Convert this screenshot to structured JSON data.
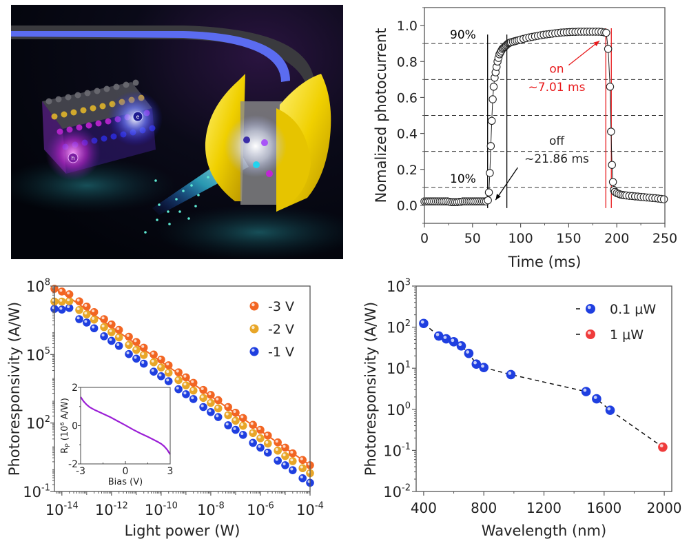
{
  "illustration": {
    "description": "3D artwork of layered crystal lattice with electron (e) and hole (h+) carriers, optical fiber ring and gold electrodes emitting light",
    "carrier_labels": [
      "e",
      "h"
    ]
  },
  "chart_data": [
    {
      "id": "time-response",
      "type": "scatter",
      "title": "",
      "xlabel": "Time (ms)",
      "ylabel": "Nomalized photocurrent",
      "xlim": [
        0,
        250
      ],
      "ylim": [
        -0.1,
        1.1
      ],
      "xticks": [
        "0",
        "50",
        "100",
        "150",
        "200",
        "250"
      ],
      "xtick_values": [
        0,
        50,
        100,
        150,
        200,
        250
      ],
      "yticks": [
        "0.0",
        "0.2",
        "0.4",
        "0.6",
        "0.8",
        "1.0"
      ],
      "ytick_values": [
        0,
        0.2,
        0.4,
        0.6,
        0.8,
        1.0
      ],
      "grid_levels": [
        0.1,
        0.3,
        0.5,
        0.7,
        0.9
      ],
      "marker": "open-circle",
      "x": [
        0,
        2,
        4,
        6,
        8,
        10,
        12,
        14,
        16,
        18,
        20,
        22,
        24,
        26,
        28,
        30,
        32,
        34,
        36,
        38,
        40,
        42,
        44,
        46,
        48,
        50,
        52,
        54,
        56,
        58,
        60,
        62,
        64,
        66,
        67,
        68,
        69,
        70,
        71,
        72,
        73,
        74,
        75,
        76,
        77,
        78,
        79,
        80,
        81,
        82,
        83,
        84,
        85,
        86,
        87,
        88,
        89,
        90,
        92,
        94,
        96,
        98,
        100,
        103,
        106,
        109,
        112,
        115,
        118,
        121,
        124,
        127,
        130,
        133,
        136,
        139,
        142,
        145,
        148,
        151,
        154,
        157,
        160,
        163,
        166,
        169,
        172,
        175,
        178,
        181,
        184,
        187,
        189,
        191,
        193,
        194,
        195,
        196,
        197,
        198,
        200,
        202,
        204,
        206,
        208,
        210,
        213,
        216,
        219,
        222,
        225,
        228,
        231,
        234,
        237,
        240,
        243,
        246,
        249
      ],
      "y": [
        0.022,
        0.022,
        0.022,
        0.022,
        0.022,
        0.022,
        0.022,
        0.022,
        0.022,
        0.022,
        0.022,
        0.022,
        0.022,
        0.02,
        0.018,
        0.018,
        0.018,
        0.018,
        0.02,
        0.02,
        0.022,
        0.022,
        0.022,
        0.022,
        0.022,
        0.022,
        0.022,
        0.022,
        0.022,
        0.022,
        0.022,
        0.022,
        0.022,
        0.028,
        0.072,
        0.18,
        0.33,
        0.47,
        0.59,
        0.66,
        0.71,
        0.74,
        0.77,
        0.8,
        0.82,
        0.84,
        0.85,
        0.86,
        0.87,
        0.875,
        0.88,
        0.885,
        0.89,
        0.895,
        0.9,
        0.903,
        0.905,
        0.907,
        0.91,
        0.913,
        0.916,
        0.919,
        0.922,
        0.926,
        0.93,
        0.934,
        0.937,
        0.94,
        0.943,
        0.946,
        0.949,
        0.951,
        0.953,
        0.955,
        0.957,
        0.959,
        0.961,
        0.962,
        0.963,
        0.964,
        0.965,
        0.965,
        0.966,
        0.966,
        0.966,
        0.966,
        0.966,
        0.966,
        0.966,
        0.966,
        0.965,
        0.962,
        0.96,
        0.87,
        0.66,
        0.41,
        0.225,
        0.13,
        0.085,
        0.075,
        0.068,
        0.064,
        0.06,
        0.058,
        0.056,
        0.055,
        0.053,
        0.052,
        0.05,
        0.049,
        0.047,
        0.046,
        0.044,
        0.043,
        0.041,
        0.04,
        0.038,
        0.036,
        0.034
      ],
      "markers_x": [],
      "vlines": [
        {
          "x": 65.7,
          "color": "#000000"
        },
        {
          "x": 85.7,
          "color": "#000000"
        },
        {
          "x": 188.6,
          "color": "#e8191b"
        },
        {
          "x": 194.3,
          "color": "#e8191b"
        }
      ],
      "annotations": [
        {
          "text": "90%",
          "color": "#000000",
          "x": 25,
          "y": 0.95
        },
        {
          "text": "10%",
          "color": "#000000",
          "x": 25,
          "y": 0.15
        },
        {
          "text": "on",
          "color": "#e8191b",
          "x": 137,
          "y": 0.76
        },
        {
          "text": "~7.01 ms",
          "color": "#e8191b",
          "x": 137,
          "y": 0.66
        },
        {
          "text": "off",
          "color": "#222222",
          "x": 137,
          "y": 0.36
        },
        {
          "text": "~21.86 ms",
          "color": "#222222",
          "x": 137,
          "y": 0.26
        }
      ],
      "arrows": [
        {
          "from": [
            150,
            0.78
          ],
          "to": [
            182,
            0.915
          ],
          "color": "#e8191b"
        },
        {
          "from": [
            97,
            0.21
          ],
          "to": [
            74,
            0.03
          ],
          "color": "#000000"
        }
      ]
    },
    {
      "id": "responsivity-vs-power",
      "type": "scatter",
      "title": "",
      "xlabel": "Light power (W)",
      "ylabel": "Photoresponsivity (A/W)",
      "xscale": "log",
      "yscale": "log",
      "xlim_log10": [
        -14.3,
        -4
      ],
      "ylim_log10": [
        -1,
        8
      ],
      "xticks": [
        {
          "base": "10",
          "exp": "-14",
          "v": -14
        },
        {
          "base": "10",
          "exp": "-12",
          "v": -12
        },
        {
          "base": "10",
          "exp": "-10",
          "v": -10
        },
        {
          "base": "10",
          "exp": "-8",
          "v": -8
        },
        {
          "base": "10",
          "exp": "-6",
          "v": -6
        },
        {
          "base": "10",
          "exp": "-4",
          "v": -4
        }
      ],
      "yticks": [
        {
          "base": "10",
          "exp": "8",
          "v": 8
        },
        {
          "base": "10",
          "exp": "5",
          "v": 5
        },
        {
          "base": "10",
          "exp": "2",
          "v": 2
        },
        {
          "base": "10",
          "exp": "-1",
          "v": -1
        }
      ],
      "legend": {
        "position": "top-right"
      },
      "x_log10": [
        -14.3,
        -14,
        -13.7,
        -13.3,
        -13,
        -12.7,
        -12.3,
        -12,
        -11.7,
        -11.3,
        -11,
        -10.7,
        -10.3,
        -10,
        -9.7,
        -9.3,
        -9,
        -8.7,
        -8.3,
        -8,
        -7.7,
        -7.3,
        -7,
        -6.7,
        -6.3,
        -6,
        -5.7,
        -5.3,
        -5,
        -4.7,
        -4.3,
        -4
      ],
      "series": [
        {
          "name": "-3 V",
          "color": "#f26522",
          "y_log10": [
            7.88,
            7.76,
            7.64,
            7.33,
            7.1,
            6.86,
            6.55,
            6.32,
            6.08,
            5.78,
            5.55,
            5.3,
            5.0,
            4.78,
            4.53,
            4.22,
            4.0,
            3.76,
            3.45,
            3.23,
            3.0,
            2.7,
            2.45,
            2.22,
            1.92,
            1.7,
            1.45,
            1.15,
            0.92,
            0.67,
            0.38,
            0.15
          ]
        },
        {
          "name": "-2 V",
          "color": "#e8a628",
          "y_log10": [
            7.32,
            7.32,
            7.34,
            6.95,
            6.76,
            6.53,
            6.2,
            5.98,
            5.75,
            5.42,
            5.2,
            4.98,
            4.66,
            4.43,
            4.2,
            3.88,
            3.65,
            3.42,
            3.1,
            2.88,
            2.64,
            2.34,
            2.1,
            1.88,
            1.56,
            1.33,
            1.1,
            0.79,
            0.55,
            0.33,
            0.02,
            -0.2
          ]
        },
        {
          "name": "-1 V",
          "color": "#1f3fe0",
          "y_log10": [
            7.0,
            6.97,
            7.04,
            6.55,
            6.4,
            6.15,
            5.8,
            5.6,
            5.38,
            5.02,
            4.82,
            4.6,
            4.25,
            4.05,
            3.83,
            3.48,
            3.26,
            3.05,
            2.7,
            2.48,
            2.26,
            1.9,
            1.7,
            1.48,
            1.13,
            0.92,
            0.7,
            0.35,
            0.15,
            -0.07,
            -0.42,
            -0.62
          ]
        }
      ],
      "fit_line": {
        "series": "-3 V",
        "color": "#f26522",
        "from": [
          -14.3,
          7.95
        ],
        "to": [
          -4,
          0.15
        ]
      },
      "inset": {
        "type": "line",
        "xlabel": "Bias (V)",
        "ylabel_main": "R",
        "ylabel_sub": "P",
        "ylabel_unit_pre": " (10",
        "ylabel_unit_exp": "6",
        "ylabel_unit_post": " A/W)",
        "xlim": [
          -3,
          3
        ],
        "ylim": [
          -2,
          2
        ],
        "xticks": [
          "-3",
          "0",
          "3"
        ],
        "xtick_values": [
          -3,
          0,
          3
        ],
        "yticks": [
          "2",
          "0",
          "-2"
        ],
        "ytick_values": [
          2,
          0,
          -2
        ],
        "color": "#9b1fd6",
        "x": [
          -3,
          -2.8,
          -2.6,
          -2.4,
          -2.2,
          -2.0,
          -1.5,
          -1.0,
          -0.5,
          0,
          0.5,
          1.0,
          1.5,
          2.0,
          2.2,
          2.4,
          2.6,
          2.8,
          3.0
        ],
        "y": [
          1.5,
          1.27,
          1.1,
          0.97,
          0.88,
          0.8,
          0.62,
          0.44,
          0.23,
          0.02,
          -0.2,
          -0.4,
          -0.58,
          -0.78,
          -0.86,
          -0.95,
          -1.08,
          -1.26,
          -1.5
        ]
      }
    },
    {
      "id": "responsivity-vs-wavelength",
      "type": "scatter",
      "title": "",
      "xlabel": "Wavelength (nm)",
      "ylabel": "Photoresponsivity (A/W)",
      "yscale": "log",
      "xlim": [
        350,
        2050
      ],
      "ylim_log10": [
        -2,
        3
      ],
      "xticks": [
        "400",
        "800",
        "1200",
        "1600",
        "2000"
      ],
      "xtick_values": [
        400,
        800,
        1200,
        1600,
        2000
      ],
      "yticks": [
        {
          "base": "10",
          "exp": "3",
          "v": 3
        },
        {
          "base": "10",
          "exp": "2",
          "v": 2
        },
        {
          "base": "10",
          "exp": "1",
          "v": 1
        },
        {
          "base": "10",
          "exp": "0",
          "v": 0
        },
        {
          "base": "10",
          "exp": "-1",
          "v": -1
        },
        {
          "base": "10",
          "exp": "-2",
          "v": -2
        }
      ],
      "legend": {
        "position": "top-right"
      },
      "line_style": "dashed",
      "series": [
        {
          "name": "0.1 μW",
          "color": "#1f3fe0",
          "x": [
            400,
            500,
            550,
            600,
            650,
            700,
            750,
            800,
            980,
            1480,
            1550,
            1640
          ],
          "y": [
            123,
            61,
            52,
            44,
            35,
            23,
            12.6,
            10.4,
            7,
            2.7,
            1.8,
            0.95
          ]
        },
        {
          "name": "1 μW",
          "color": "#ef3b3b",
          "x": [
            1990
          ],
          "y": [
            0.12
          ]
        }
      ]
    }
  ]
}
